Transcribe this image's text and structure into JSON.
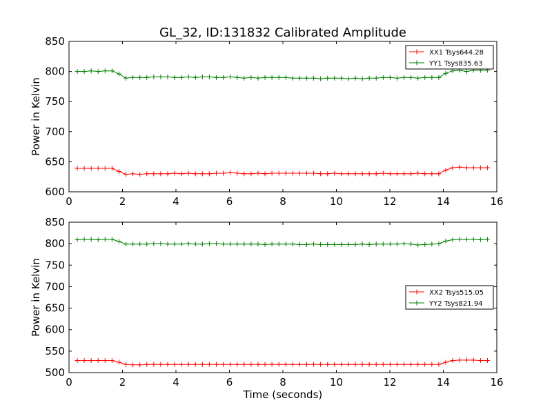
{
  "title": "GL_32, ID:131832 Calibrated Amplitude",
  "chart_data": [
    {
      "type": "line",
      "xlabel": "",
      "ylabel": "Power in Kelvin",
      "xlim": [
        0,
        16
      ],
      "ylim": [
        600,
        850
      ],
      "xticks": [
        "0",
        "2",
        "4",
        "6",
        "8",
        "10",
        "12",
        "14",
        "16"
      ],
      "yticks": [
        "600",
        "650",
        "700",
        "750",
        "800",
        "850"
      ],
      "legend_position": "top-right",
      "series": [
        {
          "name": "XX1 Tsys644.28",
          "color": "#ff0000",
          "values": [
            [
              0.31,
              639
            ],
            [
              0.57,
              639
            ],
            [
              0.83,
              639
            ],
            [
              1.09,
              639
            ],
            [
              1.35,
              639
            ],
            [
              1.61,
              639
            ],
            [
              1.87,
              634
            ],
            [
              2.13,
              629
            ],
            [
              2.39,
              630
            ],
            [
              2.65,
              629
            ],
            [
              2.91,
              630
            ],
            [
              3.17,
              630
            ],
            [
              3.43,
              630
            ],
            [
              3.69,
              630
            ],
            [
              3.95,
              631
            ],
            [
              4.21,
              630
            ],
            [
              4.47,
              631
            ],
            [
              4.73,
              630
            ],
            [
              4.99,
              630
            ],
            [
              5.25,
              630
            ],
            [
              5.51,
              631
            ],
            [
              5.77,
              631
            ],
            [
              6.03,
              632
            ],
            [
              6.29,
              631
            ],
            [
              6.55,
              630
            ],
            [
              6.81,
              630
            ],
            [
              7.07,
              631
            ],
            [
              7.33,
              630
            ],
            [
              7.59,
              631
            ],
            [
              7.85,
              631
            ],
            [
              8.11,
              631
            ],
            [
              8.37,
              631
            ],
            [
              8.63,
              631
            ],
            [
              8.89,
              631
            ],
            [
              9.15,
              631
            ],
            [
              9.41,
              630
            ],
            [
              9.67,
              630
            ],
            [
              9.93,
              631
            ],
            [
              10.19,
              630
            ],
            [
              10.45,
              630
            ],
            [
              10.71,
              630
            ],
            [
              10.97,
              630
            ],
            [
              11.23,
              630
            ],
            [
              11.49,
              630
            ],
            [
              11.75,
              631
            ],
            [
              12.01,
              630
            ],
            [
              12.27,
              630
            ],
            [
              12.53,
              630
            ],
            [
              12.79,
              630
            ],
            [
              13.05,
              631
            ],
            [
              13.31,
              630
            ],
            [
              13.57,
              630
            ],
            [
              13.83,
              630
            ],
            [
              14.09,
              636
            ],
            [
              14.35,
              640
            ],
            [
              14.61,
              641
            ],
            [
              14.87,
              640
            ],
            [
              15.13,
              640
            ],
            [
              15.39,
              640
            ],
            [
              15.65,
              640
            ]
          ]
        },
        {
          "name": "YY1 Tsys835.63",
          "color": "#008000",
          "values": [
            [
              0.31,
              800
            ],
            [
              0.57,
              800
            ],
            [
              0.83,
              801
            ],
            [
              1.09,
              800
            ],
            [
              1.35,
              801
            ],
            [
              1.61,
              801
            ],
            [
              1.87,
              796
            ],
            [
              2.13,
              789
            ],
            [
              2.39,
              790
            ],
            [
              2.65,
              790
            ],
            [
              2.91,
              790
            ],
            [
              3.17,
              791
            ],
            [
              3.43,
              791
            ],
            [
              3.69,
              791
            ],
            [
              3.95,
              790
            ],
            [
              4.21,
              790
            ],
            [
              4.47,
              791
            ],
            [
              4.73,
              790
            ],
            [
              4.99,
              791
            ],
            [
              5.25,
              791
            ],
            [
              5.51,
              790
            ],
            [
              5.77,
              790
            ],
            [
              6.03,
              791
            ],
            [
              6.29,
              790
            ],
            [
              6.55,
              789
            ],
            [
              6.81,
              790
            ],
            [
              7.07,
              789
            ],
            [
              7.33,
              790
            ],
            [
              7.59,
              790
            ],
            [
              7.85,
              790
            ],
            [
              8.11,
              790
            ],
            [
              8.37,
              789
            ],
            [
              8.63,
              789
            ],
            [
              8.89,
              789
            ],
            [
              9.15,
              789
            ],
            [
              9.41,
              788
            ],
            [
              9.67,
              789
            ],
            [
              9.93,
              789
            ],
            [
              10.19,
              789
            ],
            [
              10.45,
              788
            ],
            [
              10.71,
              789
            ],
            [
              10.97,
              788
            ],
            [
              11.23,
              789
            ],
            [
              11.49,
              789
            ],
            [
              11.75,
              790
            ],
            [
              12.01,
              790
            ],
            [
              12.27,
              789
            ],
            [
              12.53,
              790
            ],
            [
              12.79,
              790
            ],
            [
              13.05,
              789
            ],
            [
              13.31,
              790
            ],
            [
              13.57,
              790
            ],
            [
              13.83,
              790
            ],
            [
              14.09,
              797
            ],
            [
              14.35,
              801
            ],
            [
              14.61,
              802
            ],
            [
              14.87,
              800
            ],
            [
              15.13,
              802
            ],
            [
              15.39,
              802
            ],
            [
              15.65,
              802
            ]
          ]
        }
      ]
    },
    {
      "type": "line",
      "xlabel": "Time (seconds)",
      "ylabel": "Power in Kelvin",
      "xlim": [
        0,
        16
      ],
      "ylim": [
        500,
        850
      ],
      "xticks": [
        "0",
        "2",
        "4",
        "6",
        "8",
        "10",
        "12",
        "14",
        "16"
      ],
      "yticks": [
        "500",
        "550",
        "600",
        "650",
        "700",
        "750",
        "800",
        "850"
      ],
      "legend_position": "center-right",
      "series": [
        {
          "name": "XX2 Tsys515.05",
          "color": "#ff0000",
          "values": [
            [
              0.31,
              528
            ],
            [
              0.57,
              528
            ],
            [
              0.83,
              528
            ],
            [
              1.09,
              528
            ],
            [
              1.35,
              528
            ],
            [
              1.61,
              528
            ],
            [
              1.87,
              524
            ],
            [
              2.13,
              519
            ],
            [
              2.39,
              518
            ],
            [
              2.65,
              518
            ],
            [
              2.91,
              519
            ],
            [
              3.17,
              519
            ],
            [
              3.43,
              519
            ],
            [
              3.69,
              519
            ],
            [
              3.95,
              519
            ],
            [
              4.21,
              519
            ],
            [
              4.47,
              519
            ],
            [
              4.73,
              519
            ],
            [
              4.99,
              519
            ],
            [
              5.25,
              519
            ],
            [
              5.51,
              519
            ],
            [
              5.77,
              519
            ],
            [
              6.03,
              519
            ],
            [
              6.29,
              519
            ],
            [
              6.55,
              519
            ],
            [
              6.81,
              519
            ],
            [
              7.07,
              519
            ],
            [
              7.33,
              519
            ],
            [
              7.59,
              519
            ],
            [
              7.85,
              519
            ],
            [
              8.11,
              519
            ],
            [
              8.37,
              519
            ],
            [
              8.63,
              519
            ],
            [
              8.89,
              519
            ],
            [
              9.15,
              519
            ],
            [
              9.41,
              519
            ],
            [
              9.67,
              519
            ],
            [
              9.93,
              519
            ],
            [
              10.19,
              519
            ],
            [
              10.45,
              519
            ],
            [
              10.71,
              519
            ],
            [
              10.97,
              519
            ],
            [
              11.23,
              519
            ],
            [
              11.49,
              519
            ],
            [
              11.75,
              519
            ],
            [
              12.01,
              519
            ],
            [
              12.27,
              519
            ],
            [
              12.53,
              519
            ],
            [
              12.79,
              519
            ],
            [
              13.05,
              519
            ],
            [
              13.31,
              519
            ],
            [
              13.57,
              519
            ],
            [
              13.83,
              519
            ],
            [
              14.09,
              524
            ],
            [
              14.35,
              528
            ],
            [
              14.61,
              529
            ],
            [
              14.87,
              529
            ],
            [
              15.13,
              529
            ],
            [
              15.39,
              528
            ],
            [
              15.65,
              528
            ]
          ]
        },
        {
          "name": "YY2 Tsys821.94",
          "color": "#008000",
          "values": [
            [
              0.31,
              809
            ],
            [
              0.57,
              810
            ],
            [
              0.83,
              810
            ],
            [
              1.09,
              809
            ],
            [
              1.35,
              810
            ],
            [
              1.61,
              810
            ],
            [
              1.87,
              805
            ],
            [
              2.13,
              799
            ],
            [
              2.39,
              799
            ],
            [
              2.65,
              799
            ],
            [
              2.91,
              799
            ],
            [
              3.17,
              800
            ],
            [
              3.43,
              800
            ],
            [
              3.69,
              799
            ],
            [
              3.95,
              799
            ],
            [
              4.21,
              799
            ],
            [
              4.47,
              800
            ],
            [
              4.73,
              799
            ],
            [
              4.99,
              799
            ],
            [
              5.25,
              800
            ],
            [
              5.51,
              800
            ],
            [
              5.77,
              799
            ],
            [
              6.03,
              799
            ],
            [
              6.29,
              799
            ],
            [
              6.55,
              799
            ],
            [
              6.81,
              799
            ],
            [
              7.07,
              799
            ],
            [
              7.33,
              798
            ],
            [
              7.59,
              799
            ],
            [
              7.85,
              799
            ],
            [
              8.11,
              799
            ],
            [
              8.37,
              799
            ],
            [
              8.63,
              798
            ],
            [
              8.89,
              798
            ],
            [
              9.15,
              799
            ],
            [
              9.41,
              798
            ],
            [
              9.67,
              798
            ],
            [
              9.93,
              798
            ],
            [
              10.19,
              798
            ],
            [
              10.45,
              798
            ],
            [
              10.71,
              798
            ],
            [
              10.97,
              799
            ],
            [
              11.23,
              798
            ],
            [
              11.49,
              799
            ],
            [
              11.75,
              799
            ],
            [
              12.01,
              799
            ],
            [
              12.27,
              799
            ],
            [
              12.53,
              800
            ],
            [
              12.79,
              799
            ],
            [
              13.05,
              797
            ],
            [
              13.31,
              798
            ],
            [
              13.57,
              799
            ],
            [
              13.83,
              800
            ],
            [
              14.09,
              806
            ],
            [
              14.35,
              809
            ],
            [
              14.61,
              810
            ],
            [
              14.87,
              810
            ],
            [
              15.13,
              810
            ],
            [
              15.39,
              809
            ],
            [
              15.65,
              810
            ]
          ]
        }
      ]
    }
  ]
}
